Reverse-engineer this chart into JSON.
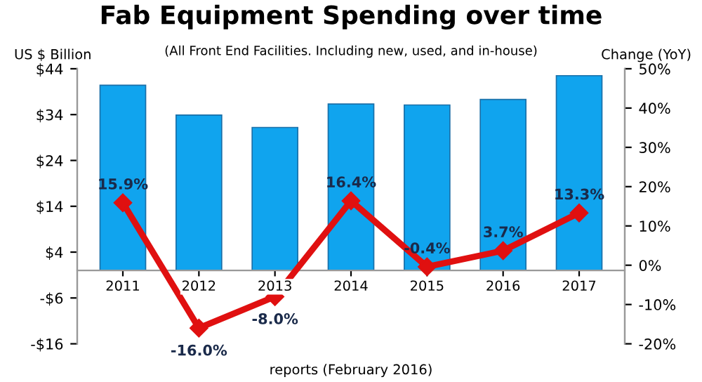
{
  "chart_data": {
    "type": "bar",
    "title": "Fab Equipment Spending over time",
    "subtitle": "(All Front End Facilities. Including new, used, and in-house)",
    "ylabel": "US $ Billion",
    "y2label": "Change (YoY)",
    "annotations": [
      "reports (February 2016)"
    ],
    "categories": [
      "2011",
      "2012",
      "2013",
      "2014",
      "2015",
      "2016",
      "2017"
    ],
    "series": [
      {
        "color": "#10a4ee",
        "values": [
          40.4,
          33.9,
          31.2,
          36.3,
          36.1,
          37.3,
          42.5
        ]
      },
      {
        "type": "line",
        "axis": "y2",
        "color": "#e01010",
        "marker": "diamond",
        "line_style": "solid",
        "values": [
          15.9,
          -16.0,
          -8.0,
          16.4,
          -0.4,
          3.7,
          13.3
        ],
        "value_labels": [
          "15.9%",
          "-16.0%",
          "-8.0%",
          "16.4%",
          "-0.4%",
          "3.7%",
          "13.3%"
        ]
      }
    ],
    "ylim": [
      -16,
      44
    ],
    "yticks": [
      {
        "value": -16,
        "label": "-$16"
      },
      {
        "value": -6,
        "label": "-$6"
      },
      {
        "value": 4,
        "label": "$4"
      },
      {
        "value": 14,
        "label": "$14"
      },
      {
        "value": 24,
        "label": "$24"
      },
      {
        "value": 34,
        "label": "$34"
      },
      {
        "value": 44,
        "label": "$44"
      }
    ],
    "y2lim": [
      -20,
      50
    ],
    "y2ticks": [
      {
        "value": -20,
        "label": "-20%"
      },
      {
        "value": -10,
        "label": "-10%"
      },
      {
        "value": 0,
        "label": "0%"
      },
      {
        "value": 10,
        "label": "10%"
      },
      {
        "value": 20,
        "label": "20%"
      },
      {
        "value": 30,
        "label": "30%"
      },
      {
        "value": 40,
        "label": "40%"
      },
      {
        "value": 50,
        "label": "50%"
      }
    ],
    "grid": false,
    "legend": false
  }
}
